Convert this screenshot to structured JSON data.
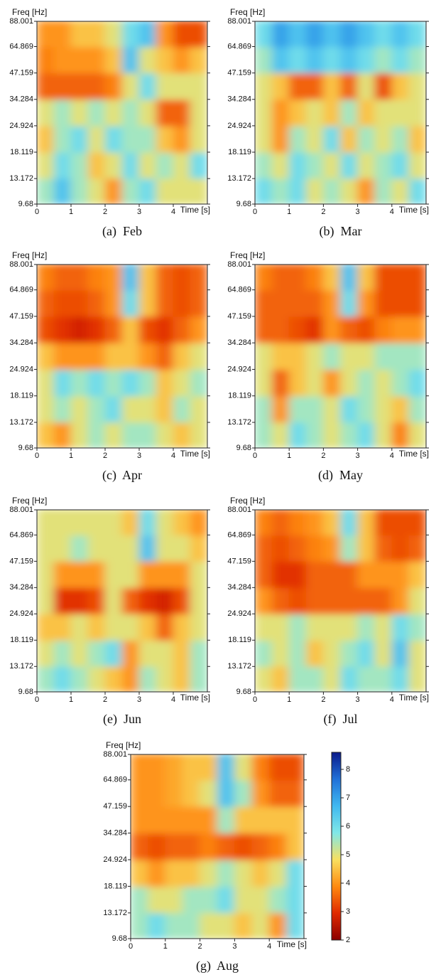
{
  "chart_data": [
    {
      "type": "heatmap",
      "title": "(a)  Feb",
      "xlabel": "Time [s]",
      "ylabel": "Freq [Hz]",
      "xlim": [
        0,
        5
      ],
      "xticks": [
        0,
        1,
        2,
        3,
        4
      ],
      "ylim": [
        9.68,
        88.001
      ],
      "yticks": [
        9.68,
        13.172,
        18.119,
        24.924,
        34.284,
        47.159,
        64.869,
        88.001
      ],
      "ylog": true,
      "x": [
        0.25,
        0.75,
        1.25,
        1.75,
        2.25,
        2.75,
        3.25,
        3.75,
        4.25,
        4.75
      ],
      "y": [
        11.3,
        15.4,
        21.2,
        29.2,
        40.2,
        55.3,
        75.6
      ],
      "z": [
        [
          5.5,
          6.5,
          5.5,
          5,
          4,
          5.5,
          6,
          5,
          5,
          5
        ],
        [
          5,
          6,
          5.5,
          4.5,
          5,
          6,
          5,
          5.5,
          5,
          6
        ],
        [
          4.5,
          5.5,
          6,
          5,
          6,
          5.5,
          5.5,
          4.5,
          4,
          5
        ],
        [
          5,
          5.5,
          5,
          5.5,
          5,
          5.5,
          5,
          3.5,
          3.5,
          5
        ],
        [
          3.5,
          3.5,
          3.5,
          3.5,
          3.8,
          5,
          6,
          5,
          5,
          5
        ],
        [
          3.8,
          4,
          4,
          4,
          4.5,
          6.5,
          5,
          4.5,
          4,
          4.5
        ],
        [
          4,
          4,
          4.5,
          4.5,
          5,
          6,
          6.5,
          4,
          3.3,
          3.3
        ]
      ]
    },
    {
      "type": "heatmap",
      "title": "(b)  Mar",
      "xlabel": "Time [s]",
      "ylabel": "Freq [Hz]",
      "xlim": [
        0,
        5
      ],
      "xticks": [
        0,
        1,
        2,
        3,
        4
      ],
      "ylim": [
        9.68,
        88.001
      ],
      "yticks": [
        9.68,
        13.172,
        18.119,
        24.924,
        34.284,
        47.159,
        64.869,
        88.001
      ],
      "ylog": true,
      "x": [
        0.25,
        0.75,
        1.25,
        1.75,
        2.25,
        2.75,
        3.25,
        3.75,
        4.25,
        4.75
      ],
      "y": [
        11.3,
        15.4,
        21.2,
        29.2,
        40.2,
        55.3,
        75.6
      ],
      "z": [
        [
          6,
          5.5,
          6,
          5,
          5.5,
          5,
          4,
          5.5,
          5,
          6
        ],
        [
          5.5,
          5,
          6,
          5.5,
          5,
          6,
          5,
          5.5,
          6,
          5
        ],
        [
          5,
          4,
          5.5,
          5,
          6,
          4.5,
          5.5,
          5,
          5.5,
          4.5
        ],
        [
          5,
          4,
          4.5,
          5,
          4.5,
          5.5,
          4.5,
          5,
          5,
          5
        ],
        [
          5,
          4.5,
          3.5,
          3.5,
          4.5,
          3.5,
          5,
          3.3,
          4.5,
          5
        ],
        [
          5.5,
          6.5,
          6,
          6.5,
          6,
          6.5,
          6,
          5.5,
          6,
          5.5
        ],
        [
          6,
          7,
          6.5,
          7,
          6.5,
          7,
          6.5,
          6,
          6.5,
          6
        ]
      ]
    },
    {
      "type": "heatmap",
      "title": "(c)  Apr",
      "xlabel": "Time [s]",
      "ylabel": "Freq [Hz]",
      "xlim": [
        0,
        5
      ],
      "xticks": [
        0,
        1,
        2,
        3,
        4
      ],
      "ylim": [
        9.68,
        88.001
      ],
      "yticks": [
        9.68,
        13.172,
        18.119,
        24.924,
        34.284,
        47.159,
        64.869,
        88.001
      ],
      "ylog": true,
      "x": [
        0.25,
        0.75,
        1.25,
        1.75,
        2.25,
        2.75,
        3.25,
        3.75,
        4.25,
        4.75
      ],
      "y": [
        11.3,
        15.4,
        21.2,
        29.2,
        40.2,
        55.3,
        75.6
      ],
      "z": [
        [
          4.5,
          4,
          5,
          5.5,
          5,
          5.5,
          5.5,
          5,
          4.5,
          5
        ],
        [
          5,
          5.5,
          5,
          5.5,
          6,
          5,
          5,
          4.5,
          5.5,
          5
        ],
        [
          5,
          6,
          5.5,
          6,
          5.5,
          6,
          5.5,
          4.5,
          5,
          5.5
        ],
        [
          4.5,
          4,
          4,
          4,
          4.5,
          4.5,
          4,
          3.5,
          4.5,
          5
        ],
        [
          3.3,
          3,
          2.8,
          3,
          3.5,
          4.5,
          3.3,
          3,
          3.5,
          4
        ],
        [
          3.5,
          3.3,
          3.3,
          3.5,
          4,
          6,
          4.5,
          3.5,
          3.3,
          3.5
        ],
        [
          3.8,
          3.5,
          3.5,
          3.8,
          4,
          6.5,
          4.5,
          3.5,
          3.3,
          3.5
        ]
      ]
    },
    {
      "type": "heatmap",
      "title": "(d)  May",
      "xlabel": "Time [s]",
      "ylabel": "Freq [Hz]",
      "xlim": [
        0,
        5
      ],
      "xticks": [
        0,
        1,
        2,
        3,
        4
      ],
      "ylim": [
        9.68,
        88.001
      ],
      "yticks": [
        9.68,
        13.172,
        18.119,
        24.924,
        34.284,
        47.159,
        64.869,
        88.001
      ],
      "ylog": true,
      "x": [
        0.25,
        0.75,
        1.25,
        1.75,
        2.25,
        2.75,
        3.25,
        3.75,
        4.25,
        4.75
      ],
      "y": [
        11.3,
        15.4,
        21.2,
        29.2,
        40.2,
        55.3,
        75.6
      ],
      "z": [
        [
          5.5,
          5,
          6,
          5.5,
          5,
          5.5,
          6,
          5,
          3.8,
          5
        ],
        [
          5.5,
          4,
          5.5,
          5.5,
          5,
          6,
          5.5,
          5,
          4.5,
          5.5
        ],
        [
          5,
          3.5,
          4.5,
          5,
          4,
          5,
          5.5,
          5,
          5.5,
          6
        ],
        [
          5,
          4.5,
          4.5,
          5,
          5.5,
          5,
          5,
          5.5,
          5.5,
          5.5
        ],
        [
          3.5,
          3.5,
          3.3,
          3,
          4,
          3.5,
          3.3,
          3.8,
          4,
          4
        ],
        [
          3.5,
          3.5,
          3.5,
          3.5,
          4,
          6,
          4,
          3.3,
          3.3,
          3.3
        ],
        [
          3.8,
          3.5,
          3.5,
          3.8,
          4.5,
          6.5,
          4.5,
          3.3,
          3.3,
          3.3
        ]
      ]
    },
    {
      "type": "heatmap",
      "title": "(e)  Jun",
      "xlabel": "Time [s]",
      "ylabel": "Freq [Hz]",
      "xlim": [
        0,
        5
      ],
      "xticks": [
        0,
        1,
        2,
        3,
        4
      ],
      "ylim": [
        9.68,
        88.001
      ],
      "yticks": [
        9.68,
        13.172,
        18.119,
        24.924,
        34.284,
        47.159,
        64.869,
        88.001
      ],
      "ylog": true,
      "x": [
        0.25,
        0.75,
        1.25,
        1.75,
        2.25,
        2.75,
        3.25,
        3.75,
        4.25,
        4.75
      ],
      "y": [
        11.3,
        15.4,
        21.2,
        29.2,
        40.2,
        55.3,
        75.6
      ],
      "z": [
        [
          5.5,
          6,
          5.5,
          5,
          4.5,
          4,
          5.5,
          5,
          4.5,
          5.5
        ],
        [
          5,
          5.5,
          5,
          5.5,
          6,
          4,
          5,
          5,
          4.5,
          5.5
        ],
        [
          4.5,
          4.5,
          5,
          4.5,
          5,
          5,
          4.5,
          3.5,
          4.5,
          5
        ],
        [
          5,
          3,
          3,
          3.3,
          5,
          3.5,
          3,
          2.8,
          3.3,
          5
        ],
        [
          5,
          4,
          4,
          4,
          5,
          5,
          4,
          4,
          4,
          5
        ],
        [
          5,
          5,
          5.5,
          5,
          5,
          5,
          6.5,
          5,
          5,
          4.5
        ],
        [
          5,
          5,
          5,
          5,
          5,
          4.5,
          6,
          5,
          4.5,
          4
        ]
      ]
    },
    {
      "type": "heatmap",
      "title": "(f)  Jul",
      "xlabel": "Time [s]",
      "ylabel": "Freq [Hz]",
      "xlim": [
        0,
        5
      ],
      "xticks": [
        0,
        1,
        2,
        3,
        4
      ],
      "ylim": [
        9.68,
        88.001
      ],
      "yticks": [
        9.68,
        13.172,
        18.119,
        24.924,
        34.284,
        47.159,
        64.869,
        88.001
      ],
      "ylog": true,
      "x": [
        0.25,
        0.75,
        1.25,
        1.75,
        2.25,
        2.75,
        3.25,
        3.75,
        4.25,
        4.75
      ],
      "y": [
        11.3,
        15.4,
        21.2,
        29.2,
        40.2,
        55.3,
        75.6
      ],
      "z": [
        [
          5,
          4.5,
          5.5,
          5.5,
          5,
          6,
          5.5,
          5.5,
          6,
          5
        ],
        [
          5.5,
          5,
          5.5,
          4.5,
          5,
          5.5,
          6,
          5,
          6.5,
          5
        ],
        [
          5,
          5,
          5.5,
          5,
          5,
          5,
          5.5,
          5,
          6,
          5.5
        ],
        [
          4,
          3.5,
          3.3,
          3.5,
          3.5,
          3.5,
          3.5,
          3.5,
          4,
          5
        ],
        [
          3.5,
          3,
          3,
          3.5,
          3.5,
          3.5,
          4,
          4,
          4,
          4.5
        ],
        [
          3.5,
          3.3,
          3.5,
          3.8,
          4,
          5.5,
          4.5,
          3.5,
          3.3,
          3.5
        ],
        [
          3.8,
          3.5,
          3.8,
          4,
          4.5,
          6,
          4.5,
          3.3,
          3.3,
          3.3
        ]
      ]
    },
    {
      "type": "heatmap",
      "title": "(g)  Aug",
      "xlabel": "Time [s]",
      "ylabel": "Freq [Hz]",
      "xlim": [
        0,
        5
      ],
      "xticks": [
        0,
        1,
        2,
        3,
        4
      ],
      "ylim": [
        9.68,
        88.001
      ],
      "yticks": [
        9.68,
        13.172,
        18.119,
        24.924,
        34.284,
        47.159,
        64.869,
        88.001
      ],
      "ylog": true,
      "x": [
        0.25,
        0.75,
        1.25,
        1.75,
        2.25,
        2.75,
        3.25,
        3.75,
        4.25,
        4.75
      ],
      "y": [
        11.3,
        15.4,
        21.2,
        29.2,
        40.2,
        55.3,
        75.6
      ],
      "z": [
        [
          5.5,
          6,
          5.5,
          5.5,
          5,
          5,
          4.5,
          5,
          4,
          6
        ],
        [
          5.5,
          5,
          5,
          5.5,
          5.5,
          6,
          5,
          5,
          5.5,
          6
        ],
        [
          4.5,
          4,
          4.5,
          4.5,
          5,
          5.5,
          5,
          4.5,
          5,
          6
        ],
        [
          3.5,
          3.3,
          3.5,
          3.5,
          3.8,
          3.5,
          3.3,
          3.5,
          3.8,
          4.5
        ],
        [
          4,
          4,
          4,
          4,
          4,
          5.5,
          4.5,
          4.5,
          4.5,
          4.5
        ],
        [
          4,
          4,
          4.2,
          4.5,
          5,
          6.5,
          5.5,
          4,
          3.5,
          3.5
        ],
        [
          4,
          4,
          4.2,
          4.5,
          4.5,
          6.5,
          5,
          3.8,
          3.3,
          3.3
        ]
      ]
    },
    {
      "type": "colorbar",
      "ylim": [
        2,
        8.6
      ],
      "yticks": [
        2,
        3,
        4,
        5,
        6,
        7,
        8
      ],
      "colormap": [
        "#8b0000",
        "#e02a00",
        "#ff8a10",
        "#f8e060",
        "#80e8e8",
        "#40b8f0",
        "#2070d8",
        "#0a1a8a"
      ]
    }
  ]
}
